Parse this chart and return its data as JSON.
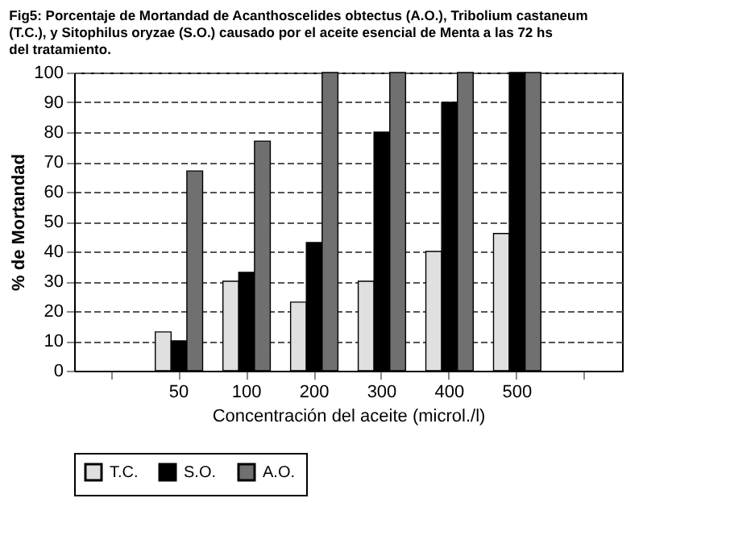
{
  "chart_data": {
    "type": "bar",
    "title": "Fig5: Porcentaje de Mortandad de Acanthoscelides obtectus (A.O.), Tribolium castaneum (T.C.), y Sitophilus oryzae (S.O.) causado por el aceite esencial de Menta a las 72 hs del tratamiento.",
    "xlabel": "Concentración del aceite (microl./l)",
    "ylabel": "% de Mortandad",
    "categories": [
      null,
      "50",
      "100",
      "200",
      "300",
      "400",
      "500",
      null
    ],
    "series": [
      {
        "name": "T.C.",
        "color": "#e0e0e0",
        "values": [
          null,
          13,
          30,
          23,
          30,
          40,
          46,
          null
        ]
      },
      {
        "name": "S.O.",
        "color": "#000000",
        "values": [
          null,
          10,
          33,
          43,
          80,
          90,
          100,
          null
        ]
      },
      {
        "name": "A.O.",
        "color": "#707070",
        "values": [
          null,
          67,
          77,
          100,
          100,
          100,
          100,
          null
        ]
      }
    ],
    "ylim": [
      0,
      100
    ],
    "yticks": [
      0,
      10,
      20,
      30,
      40,
      50,
      60,
      70,
      80,
      90,
      100
    ],
    "grid": "y",
    "legend": "bottom"
  }
}
